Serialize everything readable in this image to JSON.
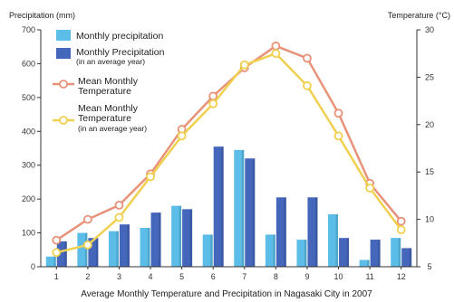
{
  "chart_data": {
    "type": "bar+line",
    "title": "",
    "caption": "Average Monthly Temperature and Precipitation in Nagasaki City in 2007",
    "categories": [
      "1",
      "2",
      "3",
      "4",
      "5",
      "6",
      "7",
      "8",
      "9",
      "10",
      "11",
      "12"
    ],
    "left_axis": {
      "label": "Precipitation (mm)",
      "range": [
        0,
        700
      ],
      "ticks": [
        "0",
        "100",
        "200",
        "300",
        "400",
        "500",
        "600",
        "700"
      ]
    },
    "right_axis": {
      "label": "Temperature (°C)",
      "range": [
        5,
        30
      ],
      "ticks": [
        "5",
        "10",
        "15",
        "20",
        "25",
        "30"
      ]
    },
    "bar_series": [
      {
        "name": "Monthly precipitation",
        "color": "#5bbde8",
        "values": [
          30,
          100,
          105,
          115,
          180,
          95,
          345,
          95,
          80,
          155,
          20,
          85
        ]
      },
      {
        "name": "Monthly Precipitation",
        "note": "(in an average year)",
        "color": "#4466bb",
        "values": [
          75,
          85,
          125,
          160,
          170,
          355,
          320,
          205,
          205,
          85,
          80,
          55
        ]
      }
    ],
    "line_series": [
      {
        "name": "Mean Monthly Temperature",
        "color": "#e8927a",
        "values": [
          7.8,
          10.0,
          11.5,
          14.8,
          19.5,
          23.0,
          26.0,
          28.3,
          27.0,
          21.2,
          13.8,
          9.8
        ]
      },
      {
        "name": "Mean Monthly Temperature",
        "note": "(in an average year)",
        "color": "#f0d050",
        "values": [
          6.5,
          7.3,
          10.2,
          14.5,
          18.8,
          22.2,
          26.3,
          27.5,
          24.1,
          18.8,
          13.3,
          8.9
        ]
      }
    ],
    "legend": {
      "placement": "top-left"
    },
    "grid": false
  }
}
